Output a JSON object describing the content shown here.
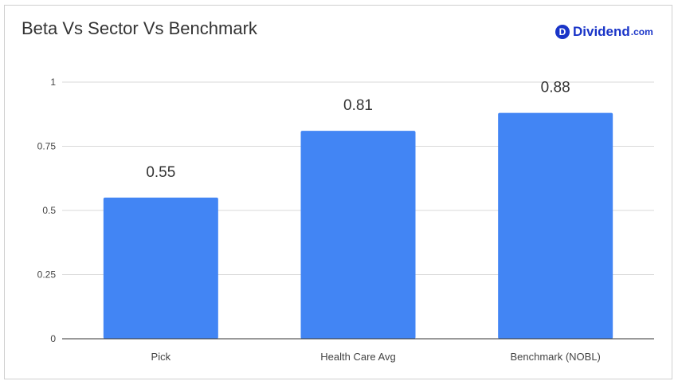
{
  "brand": {
    "mark": "D",
    "name": "Dividend",
    "tld": ".com",
    "color": "#1a35c8"
  },
  "chart_data": {
    "type": "bar",
    "title": "Beta Vs Sector Vs Benchmark",
    "categories": [
      "Pick",
      "Health Care Avg",
      "Benchmark (NOBL)"
    ],
    "values": [
      0.55,
      0.81,
      0.88
    ],
    "data_labels": [
      "0.55",
      "0.81",
      "0.88"
    ],
    "ylim": [
      0,
      1
    ],
    "yticks": [
      0,
      0.25,
      0.5,
      0.75,
      1
    ],
    "ytick_labels": [
      "0",
      "0.25",
      "0.5",
      "0.75",
      "1"
    ],
    "xlabel": "",
    "ylabel": "",
    "grid": true,
    "bar_color": "#4285f4",
    "legend": "none"
  }
}
